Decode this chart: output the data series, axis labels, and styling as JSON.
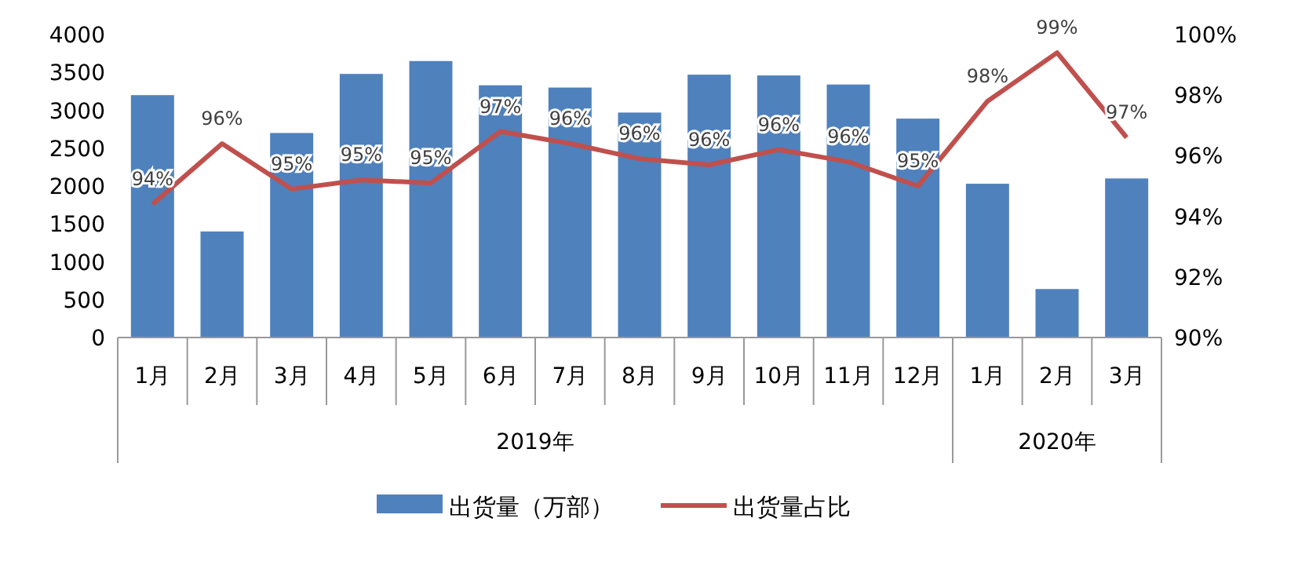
{
  "chart_data": {
    "type": "bar",
    "categories": [
      "1月",
      "2月",
      "3月",
      "4月",
      "5月",
      "6月",
      "7月",
      "8月",
      "9月",
      "10月",
      "11月",
      "12月",
      "1月",
      "2月",
      "3月"
    ],
    "annotations": [
      "2019年",
      "2020年"
    ],
    "series": [
      {
        "name": "出货量（万部）",
        "color": "#4f81bd",
        "values": [
          3200,
          1400,
          2700,
          3480,
          3650,
          3330,
          3300,
          2970,
          3470,
          3460,
          3340,
          2890,
          2030,
          640,
          2100
        ]
      },
      {
        "name": "出货量占比",
        "type": "line",
        "axis": "y2",
        "color": "#c0504d",
        "values": [
          94.4,
          96.4,
          94.9,
          95.2,
          95.1,
          96.8,
          96.4,
          95.9,
          95.7,
          96.2,
          95.8,
          95.0,
          97.8,
          99.4,
          96.6
        ],
        "value_labels": [
          "94%",
          "96%",
          "95%",
          "95%",
          "95%",
          "97%",
          "96%",
          "96%",
          "96%",
          "96%",
          "96%",
          "95%",
          "98%",
          "99%",
          "97%"
        ]
      }
    ],
    "ylim": [
      0,
      4000
    ],
    "yticks": [
      0,
      500,
      1000,
      1500,
      2000,
      2500,
      3000,
      3500,
      4000
    ],
    "y2lim": [
      90,
      100
    ],
    "y2ticks": [
      {
        "value": 90,
        "label": "90%"
      },
      {
        "value": 92,
        "label": "92%"
      },
      {
        "value": 94,
        "label": "94%"
      },
      {
        "value": 96,
        "label": "96%"
      },
      {
        "value": 98,
        "label": "98%"
      },
      {
        "value": 100,
        "label": "100%"
      }
    ],
    "legend": "bottom",
    "marker": "none"
  }
}
